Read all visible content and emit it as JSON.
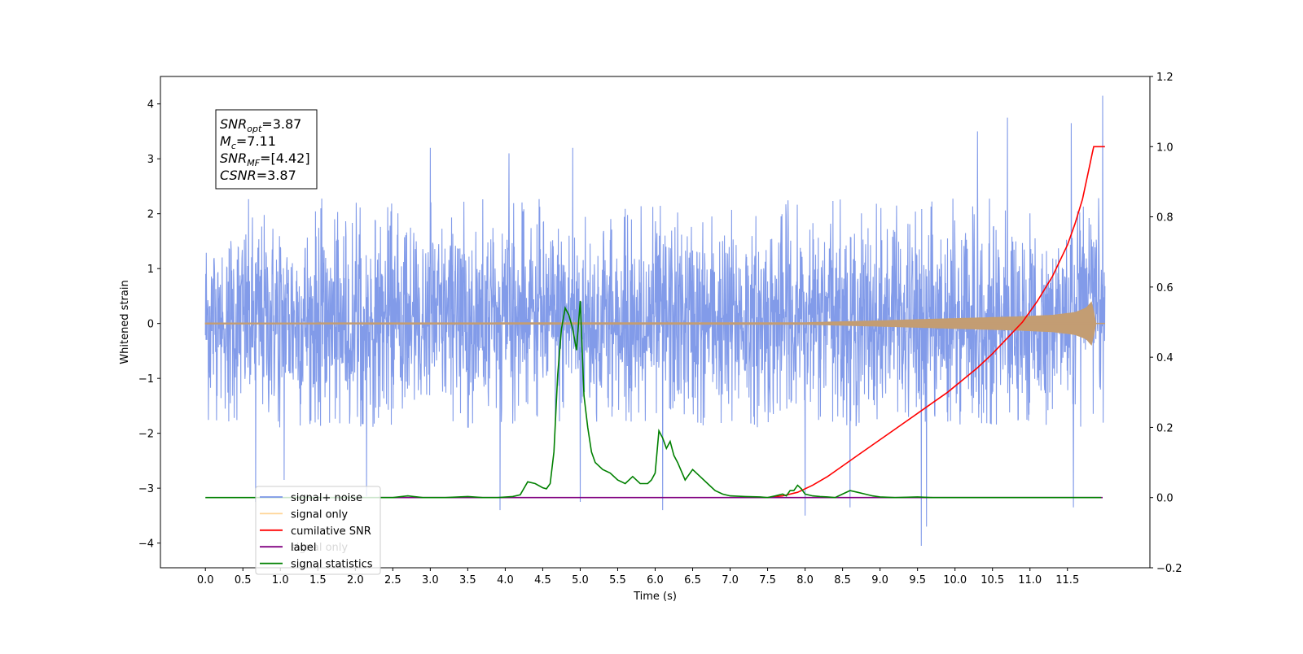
{
  "chart_data": {
    "type": "line",
    "xlabel": "Time (s)",
    "ylabel": "Whitened strain",
    "xlim": [
      -0.6,
      12.6
    ],
    "ylim": [
      -4.45,
      4.5
    ],
    "y2lim": [
      -0.2,
      1.2
    ],
    "x_ticks": [
      "0.0",
      "0.5",
      "1.0",
      "1.5",
      "2.0",
      "2.5",
      "3.0",
      "3.5",
      "4.0",
      "4.5",
      "5.0",
      "5.5",
      "6.0",
      "6.5",
      "7.0",
      "7.5",
      "8.0",
      "8.5",
      "9.0",
      "9.5",
      "10.0",
      "10.5",
      "11.0",
      "11.5"
    ],
    "y_ticks": [
      "4",
      "3",
      "2",
      "1",
      "0",
      "−1",
      "−2",
      "−3",
      "−4"
    ],
    "y2_ticks": [
      "1.2",
      "1.0",
      "0.8",
      "0.6",
      "0.4",
      "0.2",
      "0.0",
      "−0.2"
    ],
    "annotation": {
      "snr_opt": "=3.87",
      "mc": "=7.11",
      "snr_mf": "=[4.42]",
      "csnr": "=3.87"
    },
    "legend_placement": "lower-left",
    "legend": [
      {
        "name": "signal+ noise",
        "color": "#7b96e8"
      },
      {
        "name": "signal only",
        "color": "#ffc36b"
      },
      {
        "name": "cumilative SNR",
        "color": "#ff0000"
      },
      {
        "name": "label",
        "color": "#800080"
      },
      {
        "name": "signal statistics",
        "color": "#008000"
      }
    ],
    "hidden_legend_text": [
      "signal only"
    ],
    "noise": {
      "x_range": [
        0.0,
        12.0
      ],
      "typical_range": [
        -1.9,
        2.3
      ],
      "extremes": [
        {
          "x": 0.67,
          "y": -3.25
        },
        {
          "x": 1.05,
          "y": -2.85
        },
        {
          "x": 2.15,
          "y": -3.15
        },
        {
          "x": 3.0,
          "y": 3.2
        },
        {
          "x": 3.93,
          "y": -3.4
        },
        {
          "x": 4.05,
          "y": 3.1
        },
        {
          "x": 4.9,
          "y": 3.2
        },
        {
          "x": 5.0,
          "y": -3.25
        },
        {
          "x": 6.1,
          "y": -3.4
        },
        {
          "x": 8.0,
          "y": -3.5
        },
        {
          "x": 8.6,
          "y": -3.35
        },
        {
          "x": 9.55,
          "y": -4.05
        },
        {
          "x": 9.62,
          "y": -3.7
        },
        {
          "x": 10.3,
          "y": 3.5
        },
        {
          "x": 10.7,
          "y": 3.75
        },
        {
          "x": 11.58,
          "y": -3.35
        },
        {
          "x": 11.55,
          "y": 3.65
        },
        {
          "x": 11.97,
          "y": 4.15
        }
      ]
    },
    "signal_envelope": [
      {
        "x": 0.0,
        "a": 0.01
      },
      {
        "x": 8.0,
        "a": 0.015
      },
      {
        "x": 9.0,
        "a": 0.05
      },
      {
        "x": 10.0,
        "a": 0.09
      },
      {
        "x": 10.8,
        "a": 0.12
      },
      {
        "x": 11.3,
        "a": 0.15
      },
      {
        "x": 11.6,
        "a": 0.2
      },
      {
        "x": 11.75,
        "a": 0.28
      },
      {
        "x": 11.84,
        "a": 0.42
      },
      {
        "x": 11.86,
        "a": 0.0
      },
      {
        "x": 12.0,
        "a": 0.0
      }
    ],
    "series": [
      {
        "name": "cumilative SNR",
        "axis": "right",
        "x": [
          7.5,
          7.7,
          7.9,
          8.1,
          8.3,
          8.5,
          8.7,
          8.9,
          9.1,
          9.3,
          9.5,
          9.7,
          9.9,
          10.1,
          10.3,
          10.5,
          10.7,
          10.9,
          11.1,
          11.3,
          11.5,
          11.6,
          11.7,
          11.75,
          11.8,
          11.83,
          11.85,
          11.87,
          12.0
        ],
        "y": [
          0.0,
          0.005,
          0.015,
          0.035,
          0.06,
          0.09,
          0.12,
          0.15,
          0.18,
          0.21,
          0.24,
          0.27,
          0.3,
          0.335,
          0.37,
          0.41,
          0.455,
          0.5,
          0.56,
          0.63,
          0.72,
          0.78,
          0.85,
          0.9,
          0.95,
          0.98,
          1.0,
          1.0,
          1.0
        ]
      },
      {
        "name": "label",
        "axis": "right",
        "x": [
          2.3,
          11.97
        ],
        "y": [
          0.0,
          0.0
        ]
      },
      {
        "name": "signal statistics",
        "axis": "right",
        "x": [
          0.0,
          2.5,
          2.7,
          2.9,
          3.2,
          3.5,
          3.7,
          3.9,
          4.1,
          4.2,
          4.3,
          4.4,
          4.5,
          4.55,
          4.6,
          4.65,
          4.7,
          4.75,
          4.8,
          4.85,
          4.9,
          4.95,
          5.0,
          5.05,
          5.1,
          5.15,
          5.2,
          5.3,
          5.4,
          5.5,
          5.6,
          5.7,
          5.8,
          5.9,
          5.95,
          6.0,
          6.05,
          6.1,
          6.15,
          6.2,
          6.25,
          6.3,
          6.4,
          6.5,
          6.6,
          6.7,
          6.8,
          6.9,
          7.0,
          7.2,
          7.4,
          7.5,
          7.6,
          7.7,
          7.75,
          7.8,
          7.85,
          7.9,
          7.95,
          8.0,
          8.1,
          8.2,
          8.3,
          8.4,
          8.5,
          8.6,
          8.7,
          8.8,
          8.9,
          9.0,
          9.2,
          9.5,
          9.7,
          10.0,
          11.0,
          11.5,
          11.95
        ],
        "y": [
          0.0,
          0.0,
          0.005,
          0.0,
          0.0,
          0.003,
          0.0,
          0.0,
          0.003,
          0.008,
          0.045,
          0.04,
          0.028,
          0.025,
          0.04,
          0.13,
          0.35,
          0.48,
          0.54,
          0.52,
          0.48,
          0.42,
          0.56,
          0.29,
          0.2,
          0.13,
          0.1,
          0.08,
          0.07,
          0.05,
          0.04,
          0.06,
          0.04,
          0.04,
          0.05,
          0.07,
          0.19,
          0.17,
          0.14,
          0.16,
          0.12,
          0.1,
          0.05,
          0.08,
          0.06,
          0.04,
          0.02,
          0.01,
          0.005,
          0.003,
          0.002,
          0.0,
          0.005,
          0.01,
          0.005,
          0.02,
          0.02,
          0.035,
          0.025,
          0.01,
          0.005,
          0.003,
          0.002,
          0.0,
          0.01,
          0.02,
          0.015,
          0.01,
          0.005,
          0.002,
          0.0,
          0.002,
          0.0,
          0.0,
          0.0,
          0.0,
          0.0
        ]
      }
    ]
  }
}
